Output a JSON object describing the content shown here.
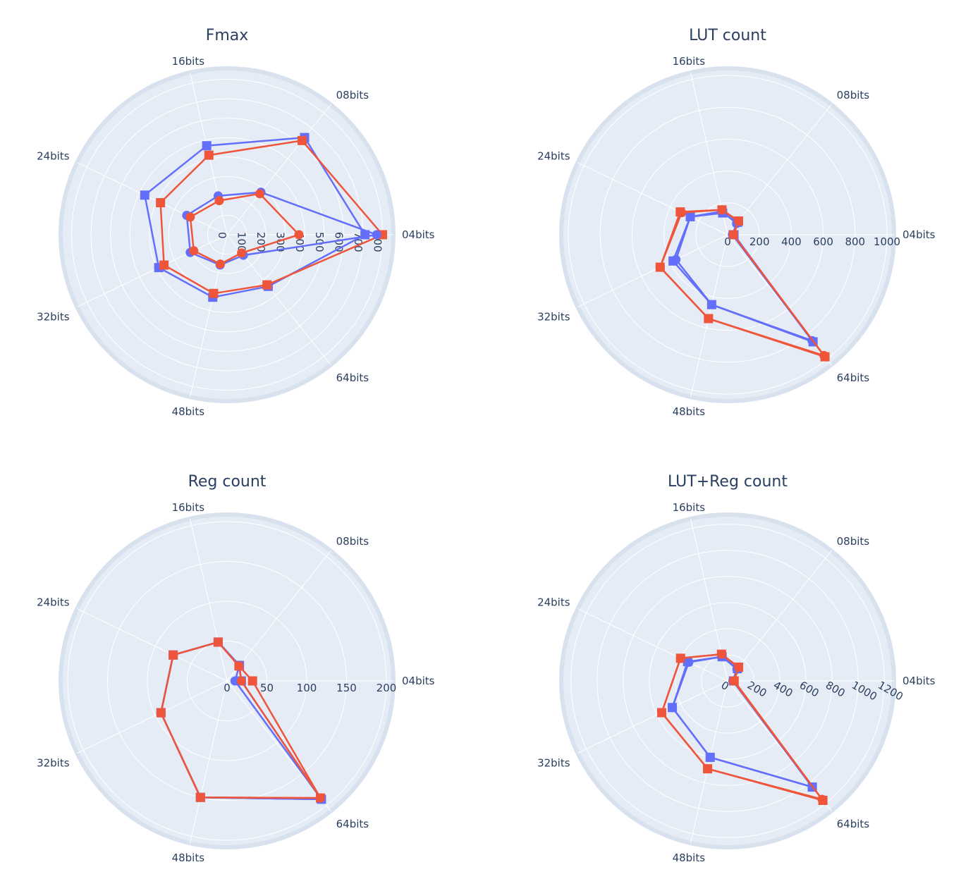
{
  "colors": {
    "background": "#ffffff",
    "polar_bg": "#e5ecf6",
    "grid": "#ffffff",
    "text": "#2a3f5f",
    "series_blue": "#636efa",
    "series_red": "#ef553b"
  },
  "chart_data": [
    {
      "type": "radar",
      "title": "Fmax",
      "categories": [
        "04bits",
        "08bits",
        "16bits",
        "24bits",
        "32bits",
        "48bits",
        "64bits"
      ],
      "radial_range": [
        0,
        820
      ],
      "radial_ticks": [
        "0",
        "100",
        "200",
        "300",
        "400",
        "500",
        "600",
        "700",
        "800"
      ],
      "radial_tick_values": [
        0,
        100,
        200,
        300,
        400,
        500,
        600,
        700,
        800
      ],
      "radial_tick_rotate": true,
      "series": [
        {
          "color": "#636efa",
          "marker": "square",
          "values": [
            710,
            640,
            470,
            470,
            390,
            330,
            340
          ]
        },
        {
          "color": "#ef553b",
          "marker": "square",
          "values": [
            800,
            620,
            420,
            380,
            360,
            310,
            330
          ]
        },
        {
          "color": "#636efa",
          "marker": "circle",
          "values": [
            770,
            280,
            205,
            230,
            210,
            160,
            135
          ]
        },
        {
          "color": "#ef553b",
          "marker": "circle",
          "values": [
            370,
            270,
            180,
            210,
            190,
            155,
            120
          ]
        }
      ]
    },
    {
      "type": "radar",
      "title": "LUT count",
      "categories": [
        "04bits",
        "08bits",
        "16bits",
        "24bits",
        "32bits",
        "48bits",
        "64bits"
      ],
      "radial_range": [
        0,
        1000
      ],
      "radial_ticks": [
        "0",
        "200",
        "400",
        "600",
        "800",
        "1000"
      ],
      "radial_tick_values": [
        0,
        200,
        400,
        600,
        800,
        1000
      ],
      "radial_tick_rotate": false,
      "series": [
        {
          "color": "#636efa",
          "marker": "square",
          "values": [
            40,
            100,
            140,
            260,
            380,
            450,
            860
          ]
        },
        {
          "color": "#ef553b",
          "marker": "square",
          "values": [
            35,
            110,
            160,
            330,
            470,
            540,
            980
          ]
        },
        {
          "color": "#636efa",
          "marker": "circle",
          "values": [
            30,
            90,
            150,
            260,
            360,
            450,
            850
          ]
        },
        {
          "color": "#ef553b",
          "marker": "circle",
          "values": [
            35,
            110,
            160,
            320,
            470,
            540,
            970
          ]
        }
      ]
    },
    {
      "type": "radar",
      "title": "Reg count",
      "categories": [
        "04bits",
        "08bits",
        "16bits",
        "24bits",
        "32bits",
        "48bits",
        "64bits"
      ],
      "radial_range": [
        0,
        200
      ],
      "radial_ticks": [
        "0",
        "50",
        "100",
        "150",
        "200"
      ],
      "radial_tick_values": [
        0,
        50,
        100,
        150,
        200
      ],
      "radial_tick_rotate": false,
      "series": [
        {
          "color": "#636efa",
          "marker": "square",
          "values": [
            18,
            25,
            50,
            75,
            92,
            150,
            190
          ]
        },
        {
          "color": "#ef553b",
          "marker": "square",
          "values": [
            32,
            24,
            50,
            75,
            92,
            150,
            188
          ]
        },
        {
          "color": "#636efa",
          "marker": "circle",
          "values": [
            10,
            25,
            50,
            75,
            92,
            150,
            190
          ]
        },
        {
          "color": "#ef553b",
          "marker": "circle",
          "values": [
            18,
            24,
            50,
            75,
            92,
            150,
            188
          ]
        }
      ]
    },
    {
      "type": "radar",
      "title": "LUT+Reg count",
      "categories": [
        "04bits",
        "08bits",
        "16bits",
        "24bits",
        "32bits",
        "48bits",
        "64bits"
      ],
      "radial_range": [
        0,
        1220
      ],
      "radial_ticks": [
        "0",
        "200",
        "400",
        "600",
        "800",
        "1000",
        "1200"
      ],
      "radial_tick_values": [
        0,
        200,
        400,
        600,
        800,
        1000,
        1200
      ],
      "radial_tick_rotate": true,
      "series": [
        {
          "color": "#636efa",
          "marker": "square",
          "values": [
            45,
            120,
            190,
            340,
            470,
            600,
            1040
          ]
        },
        {
          "color": "#ef553b",
          "marker": "square",
          "values": [
            50,
            135,
            210,
            400,
            560,
            690,
            1170
          ]
        },
        {
          "color": "#636efa",
          "marker": "circle",
          "values": [
            40,
            115,
            190,
            330,
            470,
            600,
            1040
          ]
        },
        {
          "color": "#ef553b",
          "marker": "circle",
          "values": [
            45,
            135,
            210,
            400,
            560,
            690,
            1160
          ]
        }
      ]
    }
  ]
}
